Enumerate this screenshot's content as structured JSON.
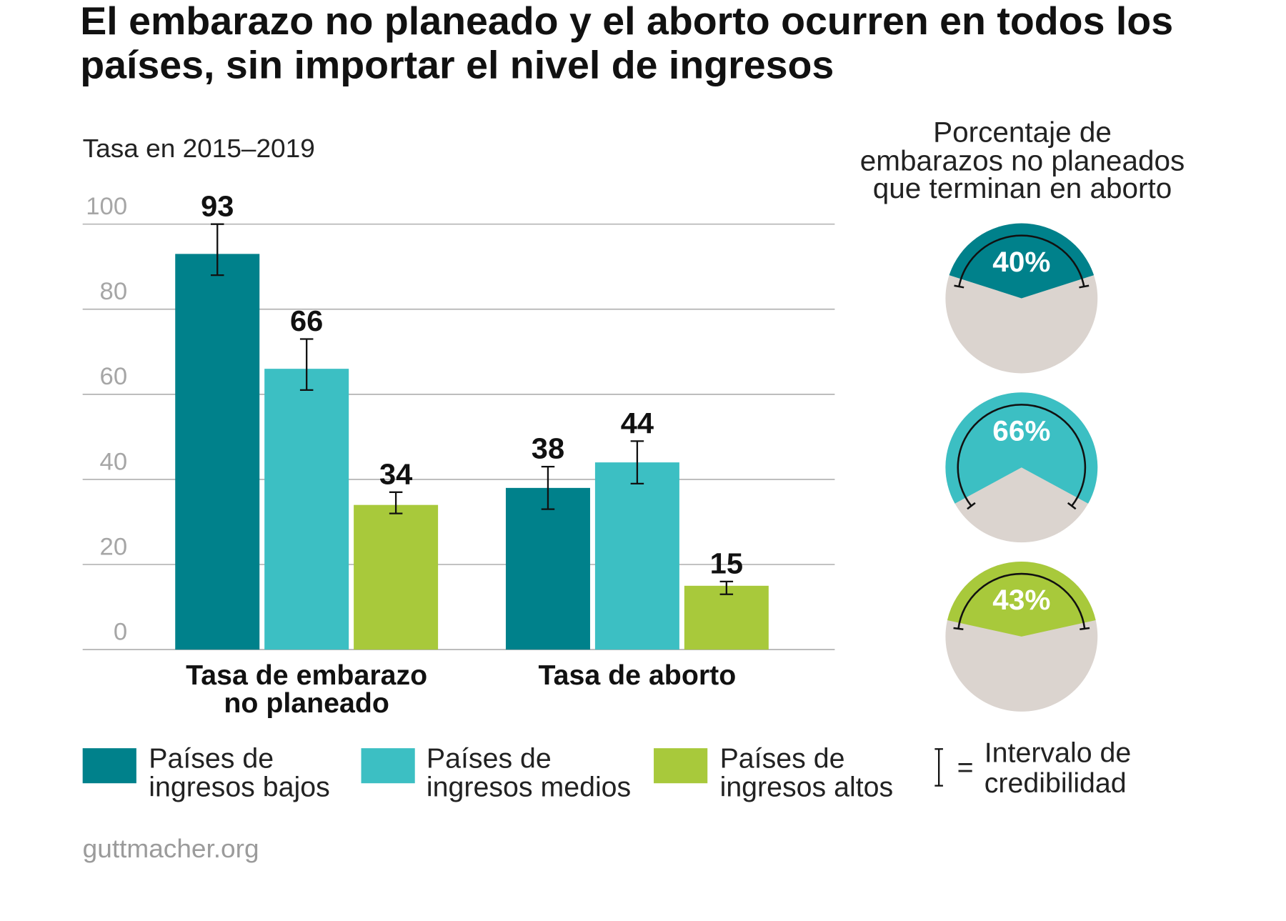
{
  "title": [
    "El embarazo no planeado y el aborto ocurren en todos los",
    "países, sin importar el nivel de ingresos"
  ],
  "source": "guttmacher.org",
  "chart_data": [
    {
      "type": "bar",
      "ylabel": "Tasa en 2015–2019",
      "ylim": [
        0,
        100
      ],
      "yticks": [
        0,
        20,
        40,
        60,
        80,
        100
      ],
      "grid": true,
      "legend": "bottom",
      "categories": [
        [
          "Tasa de embarazo",
          "no planeado"
        ],
        [
          "Tasa de aborto"
        ]
      ],
      "series": [
        {
          "name": [
            "Países de",
            "ingresos bajos"
          ],
          "color": "#00818b",
          "values": [
            93,
            38
          ],
          "ci": [
            [
              88,
              100
            ],
            [
              33,
              43
            ]
          ]
        },
        {
          "name": [
            "Países de",
            "ingresos medios"
          ],
          "color": "#3cbfc3",
          "values": [
            66,
            44
          ],
          "ci": [
            [
              61,
              73
            ],
            [
              39,
              49
            ]
          ]
        },
        {
          "name": [
            "Países de",
            "ingresos altos"
          ],
          "color": "#a8c93b",
          "values": [
            34,
            15
          ],
          "ci": [
            [
              32,
              37
            ],
            [
              13,
              16
            ]
          ]
        }
      ],
      "ci_legend": {
        "equals": "=",
        "label": [
          "Intervalo de",
          "credibilidad"
        ]
      }
    },
    {
      "type": "pie",
      "title": [
        "Porcentaje de",
        "embarazos no planeados",
        "que terminan en aborto"
      ],
      "rest_color": "#dbd4cf",
      "slices": [
        {
          "value": 40,
          "label": "40%",
          "color": "#00818b",
          "ci_upper": 44
        },
        {
          "value": 66,
          "label": "66%",
          "color": "#3cbfc3",
          "ci_upper": 71
        },
        {
          "value": 43,
          "label": "43%",
          "color": "#a8c93b",
          "ci_upper": 46
        }
      ]
    }
  ]
}
